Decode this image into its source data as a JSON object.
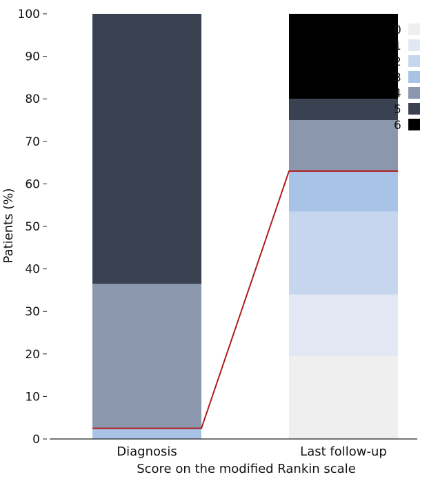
{
  "chart_data": {
    "type": "bar",
    "stacked": true,
    "categories": [
      "Diagnosis",
      "Last follow-up"
    ],
    "xlabel": "Score on the modified Rankin scale",
    "ylabel": "Patients (%)",
    "ylim": [
      0,
      100
    ],
    "yticks": [
      0,
      10,
      20,
      30,
      40,
      50,
      60,
      70,
      80,
      90,
      100
    ],
    "legend_position": "top-right",
    "series": [
      {
        "name": "0",
        "color": "#efefef",
        "values": [
          0,
          19.5
        ]
      },
      {
        "name": "1",
        "color": "#e1e8f4",
        "values": [
          0,
          14.5
        ]
      },
      {
        "name": "2",
        "color": "#c5d6ee",
        "values": [
          0,
          19.5
        ]
      },
      {
        "name": "3",
        "color": "#a9c3e7",
        "values": [
          2.5,
          9.5
        ]
      },
      {
        "name": "4",
        "color": "#8a97ad",
        "values": [
          34,
          12
        ]
      },
      {
        "name": "5",
        "color": "#3a4150",
        "values": [
          63.5,
          5
        ]
      },
      {
        "name": "6",
        "color": "#000000",
        "values": [
          0,
          20
        ]
      }
    ],
    "connector": {
      "color": "#b01c1c",
      "values": [
        2.5,
        63
      ]
    }
  }
}
